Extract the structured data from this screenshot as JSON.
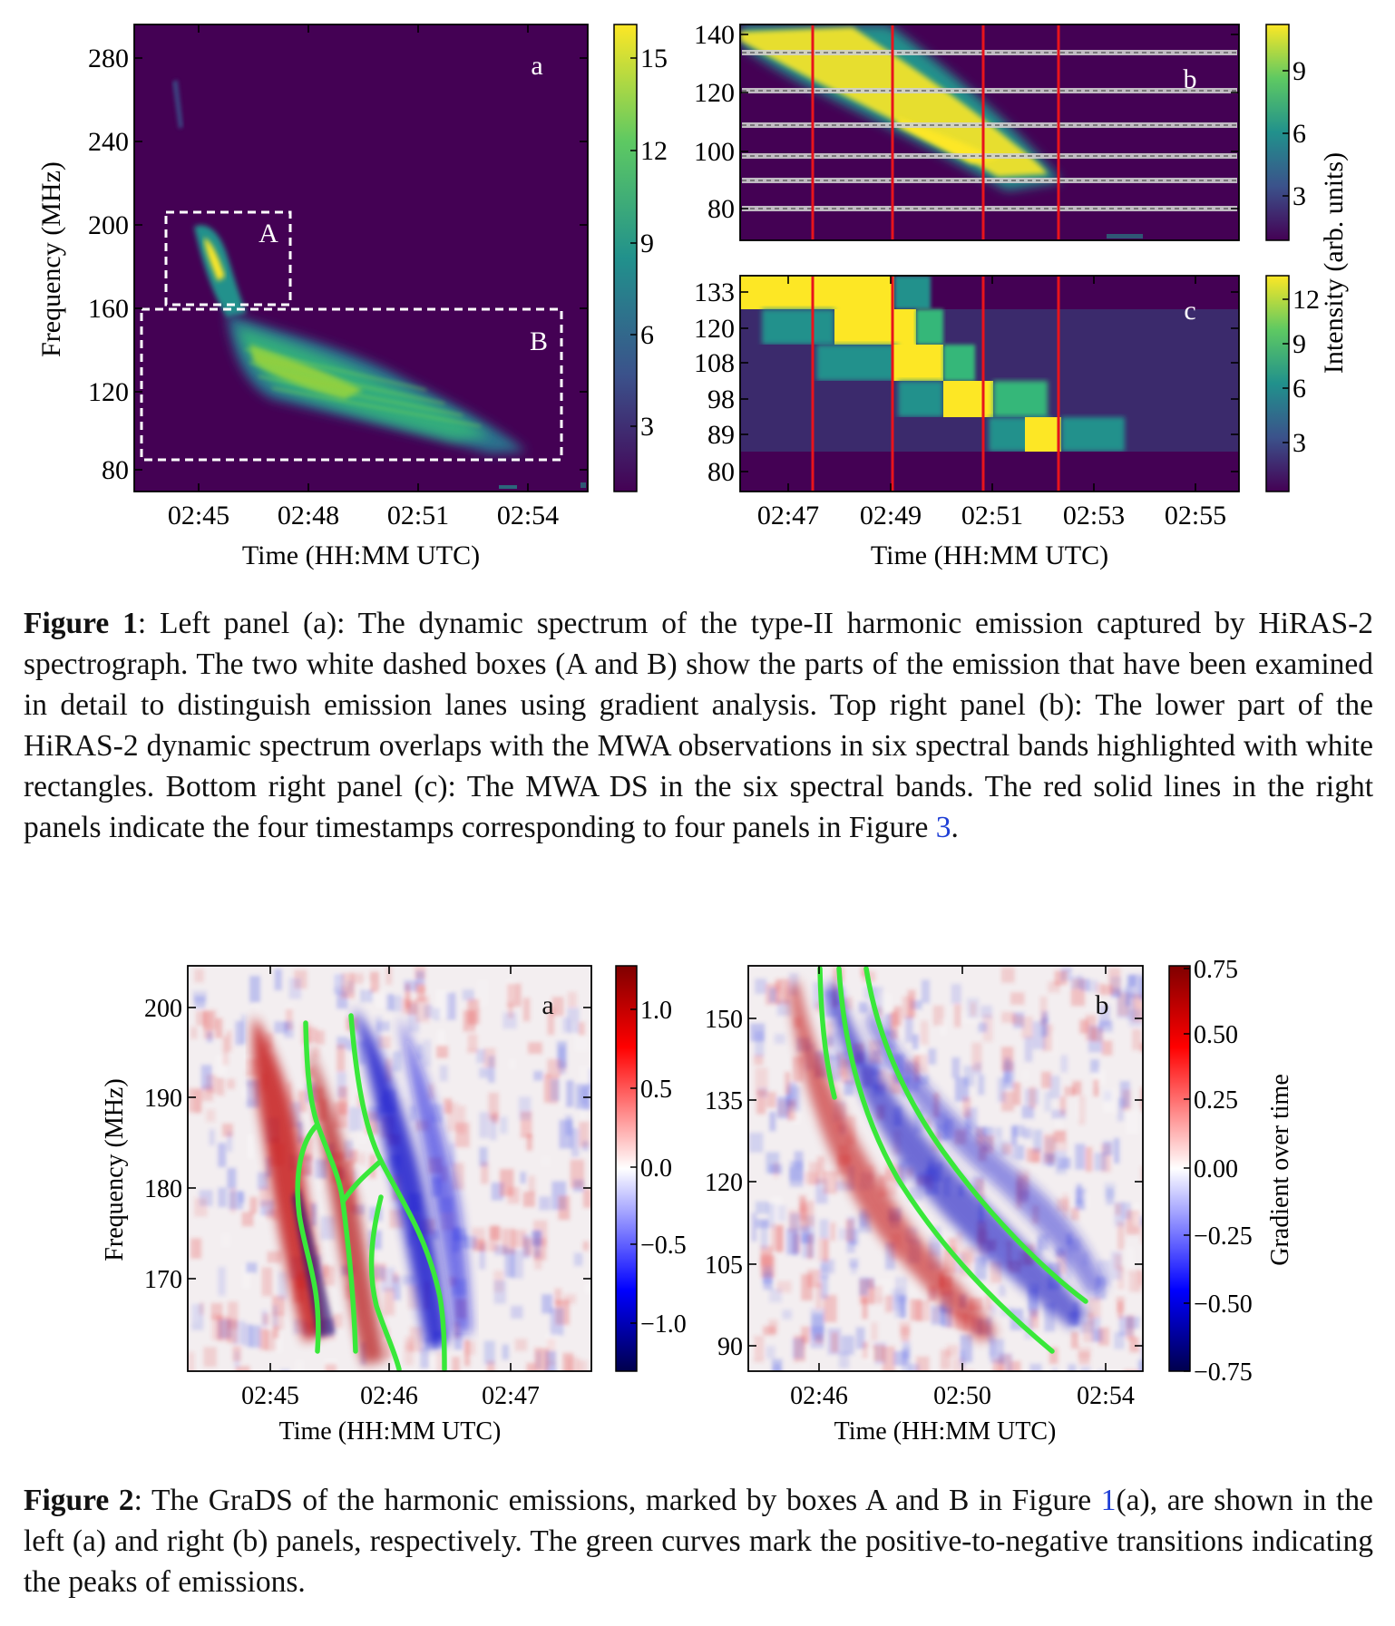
{
  "figure1": {
    "panel_a": {
      "label": "a",
      "ylabel": "Frequency (MHz)",
      "xlabel": "Time (HH:MM UTC)",
      "yticks": [
        "80",
        "120",
        "160",
        "200",
        "240",
        "280"
      ],
      "xticks": [
        "02:45",
        "02:48",
        "02:51",
        "02:54"
      ],
      "colorbar_ticks": [
        "3",
        "6",
        "9",
        "12",
        "15"
      ],
      "box_a_label": "A",
      "box_b_label": "B"
    },
    "panel_b": {
      "label": "b",
      "yticks": [
        "80",
        "100",
        "120",
        "140"
      ],
      "colorbar_ticks": [
        "3",
        "6",
        "9"
      ]
    },
    "panel_c": {
      "label": "c",
      "yticks": [
        "80",
        "89",
        "98",
        "108",
        "120",
        "133"
      ],
      "xticks": [
        "02:47",
        "02:49",
        "02:51",
        "02:53",
        "02:55"
      ],
      "xlabel": "Time (HH:MM UTC)",
      "colorbar_ticks": [
        "3",
        "6",
        "9",
        "12"
      ]
    },
    "colorbar_label": "Intensity (arb. units)",
    "caption": {
      "bold": "Figure 1",
      "text": ": Left panel (a): The dynamic spectrum of the type-II harmonic emission captured by HiRAS-2 spectrograph. The two white dashed boxes (A and B) show the parts of the emission that have been examined in detail to distinguish emission lanes using gradient analysis. Top right panel (b): The lower part of the HiRAS-2 dynamic spectrum overlaps with the MWA observations in six spectral bands highlighted with white rectangles. Bottom right panel (c): The MWA DS in the six spectral bands. The red solid lines in the right panels indicate the four timestamps corresponding to four panels in Figure ",
      "ref": "3",
      "end": "."
    }
  },
  "figure2": {
    "panel_a": {
      "label": "a",
      "ylabel": "Frequency (MHz)",
      "xlabel": "Time (HH:MM UTC)",
      "yticks": [
        "170",
        "180",
        "190",
        "200"
      ],
      "xticks": [
        "02:45",
        "02:46",
        "02:47"
      ],
      "colorbar_ticks": [
        "1.0",
        "0.5",
        "0.0",
        "−0.5",
        "−1.0"
      ]
    },
    "panel_b": {
      "label": "b",
      "xlabel": "Time (HH:MM UTC)",
      "yticks": [
        "90",
        "105",
        "120",
        "135",
        "150"
      ],
      "xticks": [
        "02:46",
        "02:50",
        "02:54"
      ],
      "colorbar_ticks": [
        "0.75",
        "0.50",
        "0.25",
        "0.00",
        "−0.25",
        "−0.50",
        "−0.75"
      ],
      "colorbar_label": "Gradient over time"
    },
    "caption": {
      "bold": "Figure 2",
      "text1": ": The GraDS of the harmonic emissions, marked by boxes A and B in Figure ",
      "ref": "1",
      "text2": "(a), are shown in the left (a) and right (b) panels, respectively. The green curves mark the positive-to-negative transitions indicating the peaks of emissions."
    }
  },
  "colors": {
    "viridis_bg": "#440154",
    "viridis_mid": "#21918c",
    "viridis_high": "#fde725",
    "redline": "#e8141c",
    "green_curve": "#39e83a",
    "ref_link": "#1f3fd6"
  }
}
